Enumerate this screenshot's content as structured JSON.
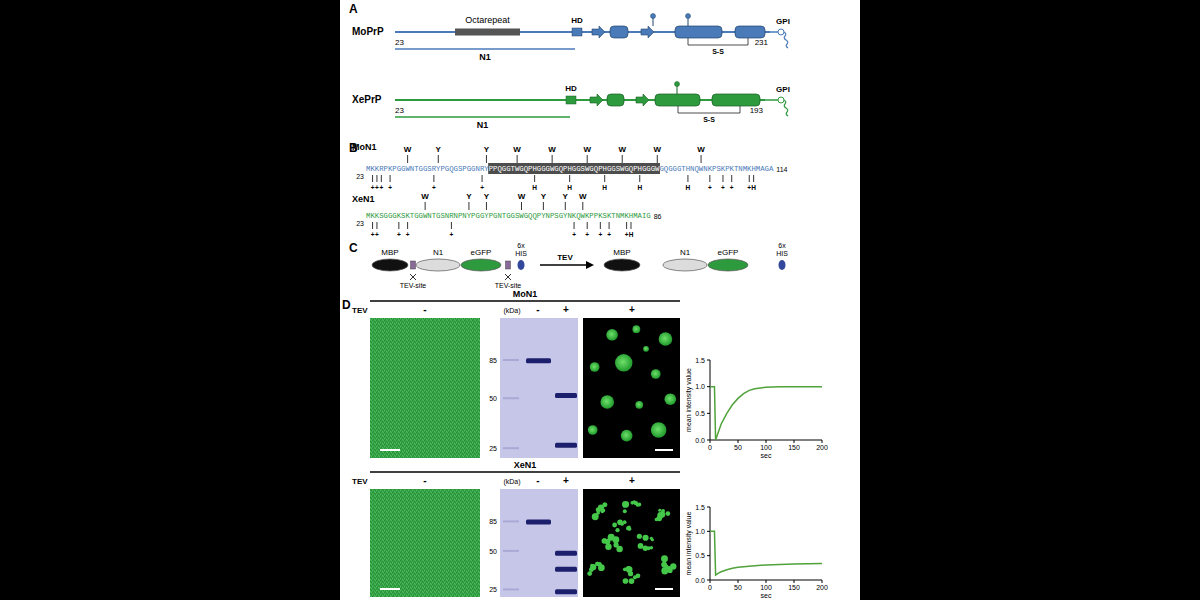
{
  "panel_a": {
    "label": "A",
    "constructs": [
      {
        "name": "MoPrP",
        "start": 23,
        "end": 231,
        "octarepeat": "Octarepeat",
        "hd": "HD",
        "gpi": "GPI",
        "ss": "S-S",
        "n1": "N1"
      },
      {
        "name": "XePrP",
        "start": 23,
        "end": 193,
        "hd": "HD",
        "gpi": "GPI",
        "ss": "S-S",
        "n1": "N1"
      }
    ]
  },
  "panel_b": {
    "label": "B",
    "sequences": [
      {
        "name": "MoN1",
        "sequence": "MKKRPKPGGWNTGGSRYPGQGSPGGNRYPPQGGTWGQPHGGGWGQPHGGSWGQPHGGSWGQPHGGGWGQGGGTHNQWNKPSKPKTNMKHMAGA",
        "start": 23,
        "end": 114,
        "highlight": [
          28,
          66
        ],
        "above": [
          {
            "position": 9,
            "label": "W"
          },
          {
            "position": 16,
            "label": "Y"
          },
          {
            "position": 27,
            "label": "Y"
          },
          {
            "position": 34,
            "label": "W"
          },
          {
            "position": 42,
            "label": "W"
          },
          {
            "position": 50,
            "label": "W"
          },
          {
            "position": 58,
            "label": "W"
          },
          {
            "position": 66,
            "label": "W"
          },
          {
            "position": 76,
            "label": "W"
          }
        ],
        "below": [
          {
            "position": 1,
            "label": "+"
          },
          {
            "position": 2,
            "label": "+"
          },
          {
            "position": 3,
            "label": "+"
          },
          {
            "position": 5,
            "label": "+"
          },
          {
            "position": 15,
            "label": "+"
          },
          {
            "position": 26,
            "label": "+"
          },
          {
            "position": 38,
            "label": "H"
          },
          {
            "position": 46,
            "label": "H"
          },
          {
            "position": 54,
            "label": "H"
          },
          {
            "position": 62,
            "label": "H"
          },
          {
            "position": 73,
            "label": "H"
          },
          {
            "position": 78,
            "label": "+"
          },
          {
            "position": 81,
            "label": "+"
          },
          {
            "position": 83,
            "label": "+"
          },
          {
            "position": 87,
            "label": "+"
          },
          {
            "position": 88,
            "label": "H"
          }
        ]
      },
      {
        "name": "XeN1",
        "sequence": "MKKSGGGKSKTGGWNTGSNRNPNYPGGYPGNTGGSWGQQPYNPSGYNKQWKPPKSKTNMKHMAIG",
        "start": 23,
        "end": 86,
        "above": [
          {
            "position": 13,
            "label": "W"
          },
          {
            "position": 23,
            "label": "Y"
          },
          {
            "position": 27,
            "label": "Y"
          },
          {
            "position": 35,
            "label": "W"
          },
          {
            "position": 40,
            "label": "Y"
          },
          {
            "position": 45,
            "label": "Y"
          },
          {
            "position": 49,
            "label": "W"
          }
        ],
        "below": [
          {
            "position": 1,
            "label": "+"
          },
          {
            "position": 2,
            "label": "+"
          },
          {
            "position": 7,
            "label": "+"
          },
          {
            "position": 9,
            "label": "+"
          },
          {
            "position": 19,
            "label": "+"
          },
          {
            "position": 47,
            "label": "+"
          },
          {
            "position": 50,
            "label": "+"
          },
          {
            "position": 53,
            "label": "+"
          },
          {
            "position": 55,
            "label": "+"
          },
          {
            "position": 59,
            "label": "+"
          },
          {
            "position": 60,
            "label": "H"
          }
        ]
      }
    ]
  },
  "panel_c": {
    "label": "C",
    "parts": [
      "MBP",
      "N1",
      "eGFP"
    ],
    "tag": [
      "6x",
      "HIS"
    ],
    "site_label": "TEV-site",
    "arrow_label": "TEV"
  },
  "panel_d": {
    "label": "D",
    "row_label": "TEV",
    "kda_label": "(kDa)",
    "markers": [
      85,
      50,
      25
    ],
    "rows": [
      {
        "name": "MoN1",
        "signs": {
          "image_minus": "-",
          "gel_minus": "-",
          "gel_plus": "+",
          "image_plus": "+"
        },
        "bands_minus": [
          84
        ],
        "bands_plus": [
          52,
          26
        ]
      },
      {
        "name": "XeN1",
        "signs": {
          "image_minus": "-",
          "gel_minus": "-",
          "gel_plus": "+",
          "image_plus": "+"
        },
        "bands_minus": [
          84
        ],
        "bands_plus": [
          48,
          36,
          24
        ]
      }
    ]
  },
  "chart_data": [
    {
      "type": "line",
      "x": [
        0,
        5,
        8,
        10,
        15,
        20,
        30,
        40,
        50,
        60,
        70,
        80,
        100,
        125,
        150,
        200
      ],
      "values": [
        1.0,
        1.0,
        1.0,
        0.0,
        0.15,
        0.3,
        0.5,
        0.66,
        0.78,
        0.87,
        0.93,
        0.96,
        0.99,
        1.0,
        1.0,
        1.0
      ],
      "color": "#4fa33a",
      "x_label": "sec",
      "y_label": "mean intensity value",
      "xlim": [
        0,
        200
      ],
      "ylim": [
        0,
        1.5
      ],
      "xticks": [
        0,
        50,
        100,
        150,
        200
      ],
      "yticks": [
        {
          "value": 0,
          "label": "0.0"
        },
        0.5,
        {
          "value": 1,
          "label": "1.0"
        },
        1.5
      ]
    },
    {
      "type": "line",
      "x": [
        0,
        5,
        8,
        10,
        15,
        20,
        30,
        40,
        50,
        75,
        100,
        125,
        150,
        200
      ],
      "values": [
        1.0,
        1.0,
        1.0,
        0.1,
        0.14,
        0.17,
        0.21,
        0.24,
        0.26,
        0.29,
        0.31,
        0.32,
        0.33,
        0.34
      ],
      "color": "#4fa33a",
      "x_label": "sec",
      "y_label": "mean intensity value",
      "xlim": [
        0,
        200
      ],
      "ylim": [
        0,
        1.5
      ],
      "xticks": [
        0,
        50,
        100,
        150,
        200
      ],
      "yticks": [
        {
          "value": 0,
          "label": "0.0"
        },
        0.5,
        {
          "value": 1,
          "label": "1.0"
        },
        1.5
      ]
    }
  ]
}
